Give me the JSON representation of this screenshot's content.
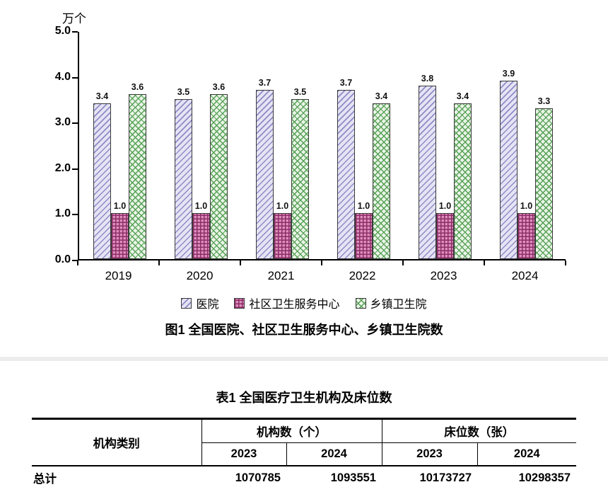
{
  "chart_data": [
    {
      "type": "bar",
      "title": "图1 全国医院、社区卫生服务中心、乡镇卫生院数",
      "unit_label": "万个",
      "categories": [
        "2019",
        "2020",
        "2021",
        "2022",
        "2023",
        "2024"
      ],
      "series": [
        {
          "name": "医院",
          "values": [
            3.4,
            3.5,
            3.7,
            3.7,
            3.8,
            3.9
          ],
          "fill": "#E6E3F5",
          "hatch_color": "#8C8CC4",
          "pattern": "diagonal"
        },
        {
          "name": "社区卫生服务中心",
          "values": [
            1.0,
            1.0,
            1.0,
            1.0,
            1.0,
            1.0
          ],
          "fill": "#DD8FBC",
          "hatch_color": "#8D2D68",
          "pattern": "grid"
        },
        {
          "name": "乡镇卫生院",
          "values": [
            3.6,
            3.6,
            3.5,
            3.4,
            3.4,
            3.3
          ],
          "fill": "#E9F4E6",
          "hatch_color": "#55A055",
          "pattern": "crosshatch"
        }
      ],
      "ylim": [
        0,
        5.0
      ],
      "yticks": [
        "0.0",
        "1.0",
        "2.0",
        "3.0",
        "4.0",
        "5.0"
      ],
      "grid": false,
      "legend_position": "bottom",
      "data_labels": true
    },
    {
      "type": "table",
      "title": "表1 全国医疗卫生机构及床位数",
      "columns": [
        "机构类别",
        "机构数（个）2023",
        "机构数（个）2024",
        "床位数（张）2023",
        "床位数（张）2024"
      ],
      "rows": [
        [
          "总计",
          "1070785",
          "1093551",
          "10173727",
          "10298357"
        ]
      ]
    }
  ],
  "table": {
    "title": "表1 全国医疗卫生机构及床位数",
    "header": {
      "category": "机构类别",
      "org_group": "机构数（个）",
      "bed_group": "床位数（张）",
      "org_2023": "2023",
      "org_2024": "2024",
      "bed_2023": "2023",
      "bed_2024": "2024"
    },
    "rows": [
      {
        "label": "总计",
        "values": [
          "1070785",
          "1093551",
          "10173727",
          "10298357"
        ]
      }
    ]
  }
}
